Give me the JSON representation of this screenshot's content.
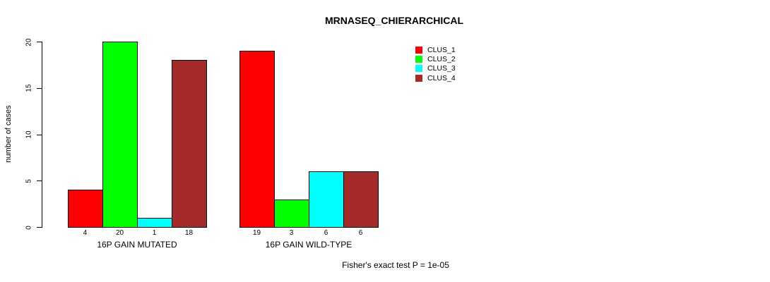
{
  "chart_data": {
    "type": "bar",
    "title": "MRNASEQ_CHIERARCHICAL",
    "ylabel": "number of cases",
    "xlabel": "",
    "ylim": [
      0,
      20
    ],
    "yticks": [
      0,
      5,
      10,
      15,
      20
    ],
    "categories": [
      "16P GAIN MUTATED",
      "16P GAIN WILD-TYPE"
    ],
    "series": [
      {
        "name": "CLUS_1",
        "color": "#FF0000",
        "values": [
          4,
          19
        ]
      },
      {
        "name": "CLUS_2",
        "color": "#00FF00",
        "values": [
          20,
          3
        ]
      },
      {
        "name": "CLUS_3",
        "color": "#00FFFF",
        "values": [
          1,
          6
        ]
      },
      {
        "name": "CLUS_4",
        "color": "#A52A2A",
        "values": [
          18,
          6
        ]
      }
    ],
    "value_labels_shown": true,
    "bar_border_color": "#000000",
    "legend_position": "top-right",
    "grid": false,
    "background": "#FFFFFF",
    "annotation": "Fisher's exact test P = 1e-05"
  }
}
